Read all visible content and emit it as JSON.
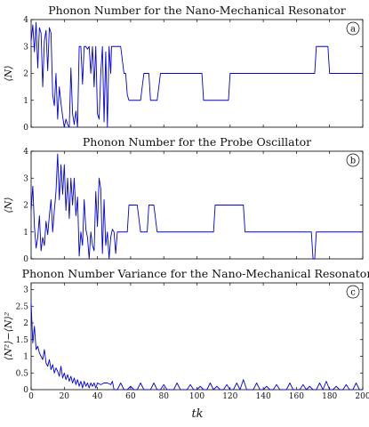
{
  "figure": {
    "xlabel": "tk",
    "line_color": "#0000e0",
    "axis_color": "#000000"
  },
  "chart_data": [
    {
      "type": "line",
      "title": "Phonon Number for the Nano-Mechanical Resonator",
      "panel_label": "a",
      "ylabel": "⟨N⟩",
      "xlim": [
        0,
        200
      ],
      "ylim": [
        0,
        4
      ],
      "yticks": [
        0,
        1,
        2,
        3,
        4
      ],
      "xticks": [
        0,
        20,
        40,
        60,
        80,
        100,
        120,
        140,
        160,
        180,
        200
      ],
      "show_xtick_labels": false,
      "series": [
        {
          "x": [
            0,
            1,
            2,
            3,
            4,
            5,
            6,
            7,
            8,
            9,
            10,
            11,
            12,
            13,
            14,
            15,
            16,
            17,
            18,
            19,
            20,
            21,
            22,
            23,
            24,
            25,
            26,
            27,
            28,
            29,
            30,
            31,
            32,
            33,
            34,
            35,
            36,
            37,
            38,
            39,
            40,
            41,
            42,
            43,
            44,
            45,
            46,
            47,
            48,
            48.5,
            50,
            52,
            54,
            56,
            57,
            58,
            59,
            60,
            61,
            62,
            64,
            66,
            68,
            70,
            71,
            72,
            74,
            76,
            78,
            80,
            81,
            82,
            84,
            86,
            88,
            90,
            92,
            94,
            96,
            98,
            100,
            102,
            103,
            104,
            106,
            108,
            110,
            112,
            114,
            116,
            118,
            119,
            120,
            122,
            124,
            126,
            128,
            130,
            132,
            134,
            136,
            138,
            140,
            142,
            144,
            146,
            148,
            150,
            152,
            154,
            156,
            158,
            160,
            162,
            164,
            166,
            168,
            170,
            171,
            172,
            174,
            176,
            178,
            179,
            180,
            182,
            184,
            186,
            188,
            190,
            192,
            194,
            196,
            198,
            199.5
          ],
          "y": [
            3.2,
            3.8,
            2.8,
            3.9,
            2.2,
            3.7,
            3.5,
            1.5,
            3.2,
            3.6,
            2.1,
            3.7,
            3.5,
            1.2,
            0.8,
            2.0,
            0.3,
            1.5,
            0.9,
            0.4,
            0,
            0.3,
            0.1,
            0,
            2.2,
            0.5,
            0.1,
            0.6,
            0,
            3.0,
            3.0,
            1.6,
            3.0,
            3.0,
            2.9,
            3.0,
            2.0,
            3.0,
            1.5,
            3.0,
            0.5,
            0.3,
            2.0,
            3.0,
            0.2,
            2.8,
            0,
            3.0,
            2.0,
            3.0,
            3.0,
            3.0,
            3.0,
            2.0,
            2.0,
            1.2,
            1.0,
            1.0,
            1.0,
            1.0,
            1.0,
            1.0,
            2.0,
            2.0,
            2.0,
            1.0,
            1.0,
            1.0,
            2.0,
            2.0,
            2.0,
            2.0,
            2.0,
            2.0,
            2.0,
            2.0,
            2.0,
            2.0,
            2.0,
            2.0,
            2.0,
            2.0,
            2.0,
            1.0,
            1.0,
            1.0,
            1.0,
            1.0,
            1.0,
            1.0,
            1.0,
            1.0,
            2.0,
            2.0,
            2.0,
            2.0,
            2.0,
            2.0,
            2.0,
            2.0,
            2.0,
            2.0,
            2.0,
            2.0,
            2.0,
            2.0,
            2.0,
            2.0,
            2.0,
            2.0,
            2.0,
            2.0,
            2.0,
            2.0,
            2.0,
            2.0,
            2.0,
            2.0,
            2.0,
            3.0,
            3.0,
            3.0,
            3.0,
            3.0,
            2.0,
            2.0,
            2.0,
            2.0,
            2.0,
            2.0,
            2.0,
            2.0,
            2.0,
            2.0,
            2.0
          ]
        }
      ]
    },
    {
      "type": "line",
      "title": "Phonon Number for the Probe Oscillator",
      "panel_label": "b",
      "ylabel": "⟨N⟩",
      "xlim": [
        0,
        200
      ],
      "ylim": [
        0,
        4
      ],
      "yticks": [
        0,
        1,
        2,
        3,
        4
      ],
      "xticks": [
        0,
        20,
        40,
        60,
        80,
        100,
        120,
        140,
        160,
        180,
        200
      ],
      "show_xtick_labels": false,
      "series": [
        {
          "x": [
            0,
            1,
            2,
            3,
            4,
            5,
            6,
            7,
            8,
            9,
            10,
            11,
            12,
            13,
            14,
            15,
            16,
            17,
            18,
            19,
            20,
            21,
            22,
            23,
            24,
            25,
            26,
            27,
            28,
            29,
            30,
            31,
            32,
            33,
            34,
            35,
            36,
            37,
            38,
            39,
            40,
            41,
            42,
            43,
            44,
            45,
            46,
            47,
            48,
            49,
            50,
            51,
            52,
            54,
            56,
            58,
            59,
            60,
            62,
            64,
            66,
            68,
            70,
            71,
            72,
            74,
            76,
            78,
            80,
            81,
            82,
            84,
            86,
            88,
            90,
            92,
            94,
            96,
            98,
            100,
            102,
            104,
            106,
            108,
            110,
            111,
            112,
            114,
            116,
            118,
            120,
            122,
            124,
            126,
            128,
            129,
            130,
            132,
            134,
            136,
            138,
            140,
            142,
            144,
            146,
            148,
            150,
            152,
            154,
            156,
            158,
            160,
            162,
            164,
            166,
            168,
            169,
            170,
            171,
            172,
            174,
            176,
            177,
            178,
            180,
            182,
            184,
            186,
            188,
            190,
            192,
            194,
            196,
            198,
            199.5
          ],
          "y": [
            1.8,
            2.7,
            1.2,
            0.4,
            0.8,
            1.6,
            0.3,
            0.8,
            0.5,
            1.4,
            0.9,
            1.6,
            2.2,
            1.0,
            1.8,
            2.5,
            3.9,
            2.2,
            3.5,
            2.4,
            3.5,
            1.8,
            3.0,
            1.5,
            3.0,
            2.0,
            3.0,
            1.6,
            2.3,
            0.1,
            1.0,
            0.5,
            2.2,
            1.1,
            0.8,
            0,
            1.0,
            0.5,
            0.3,
            2.5,
            1.2,
            3.0,
            2.6,
            0.2,
            2.2,
            0.5,
            1.0,
            0,
            0.8,
            1.1,
            1.0,
            0.2,
            1.0,
            1.0,
            1.0,
            1.0,
            2.0,
            2.0,
            2.0,
            2.0,
            1.0,
            1.0,
            1.0,
            2.0,
            2.0,
            2.0,
            1.0,
            1.0,
            1.0,
            1.0,
            1.0,
            1.0,
            1.0,
            1.0,
            1.0,
            1.0,
            1.0,
            1.0,
            1.0,
            1.0,
            1.0,
            1.0,
            1.0,
            1.0,
            1.0,
            2.0,
            2.0,
            2.0,
            2.0,
            2.0,
            2.0,
            2.0,
            2.0,
            2.0,
            2.0,
            1.0,
            1.0,
            1.0,
            1.0,
            1.0,
            1.0,
            1.0,
            1.0,
            1.0,
            1.0,
            1.0,
            1.0,
            1.0,
            1.0,
            1.0,
            1.0,
            1.0,
            1.0,
            1.0,
            1.0,
            1.0,
            1.0,
            0,
            0,
            1.0,
            1.0,
            1.0,
            1.0,
            1.0,
            1.0,
            1.0,
            1.0,
            1.0,
            1.0,
            1.0,
            1.0,
            1.0,
            1.0,
            1.0,
            1.0
          ]
        }
      ]
    },
    {
      "type": "line",
      "title": "Phonon Number Variance for the Nano-Mechanical Resonator",
      "panel_label": "c",
      "ylabel": "⟨N²⟩−⟨N⟩²",
      "xlim": [
        0,
        200
      ],
      "ylim": [
        0,
        3.2
      ],
      "yticks": [
        0,
        0.5,
        1,
        1.5,
        2,
        2.5,
        3
      ],
      "ytick_labels": [
        "0",
        "0.5",
        "1",
        "1.5",
        "2",
        "2.5",
        "3"
      ],
      "xticks": [
        0,
        20,
        40,
        60,
        80,
        100,
        120,
        140,
        160,
        180,
        200
      ],
      "xtick_labels": [
        "0",
        "20",
        "40",
        "60",
        "80",
        "100",
        "120",
        "140",
        "160",
        "180",
        "200"
      ],
      "show_xtick_labels": true,
      "series": [
        {
          "x": [
            0,
            1,
            2,
            3,
            4,
            5,
            6,
            7,
            8,
            9,
            10,
            11,
            12,
            13,
            14,
            15,
            16,
            17,
            18,
            19,
            20,
            21,
            22,
            23,
            24,
            25,
            26,
            27,
            28,
            29,
            30,
            31,
            32,
            33,
            34,
            35,
            36,
            37,
            38,
            39,
            40,
            42,
            44,
            46,
            48,
            49,
            50,
            52,
            54,
            56,
            58,
            60,
            62,
            64,
            66,
            68,
            70,
            72,
            74,
            76,
            78,
            80,
            82,
            84,
            86,
            88,
            90,
            92,
            94,
            96,
            98,
            100,
            102,
            104,
            106,
            108,
            110,
            112,
            114,
            116,
            118,
            120,
            122,
            124,
            126,
            128,
            130,
            132,
            134,
            136,
            138,
            140,
            142,
            144,
            146,
            148,
            150,
            152,
            154,
            156,
            158,
            160,
            162,
            164,
            166,
            168,
            170,
            172,
            174,
            176,
            178,
            180,
            182,
            184,
            186,
            188,
            190,
            192,
            194,
            196,
            198,
            199.5
          ],
          "y": [
            2.6,
            1.4,
            1.9,
            1.2,
            1.3,
            1.1,
            1.0,
            0.9,
            1.2,
            0.8,
            0.7,
            0.9,
            0.6,
            0.75,
            0.5,
            0.65,
            0.55,
            0.4,
            0.7,
            0.35,
            0.5,
            0.3,
            0.45,
            0.25,
            0.4,
            0.2,
            0.35,
            0.15,
            0.3,
            0.1,
            0.25,
            0.05,
            0.25,
            0.1,
            0.2,
            0.05,
            0.2,
            0.1,
            0.2,
            0.05,
            0.2,
            0.15,
            0.2,
            0.2,
            0.15,
            0.25,
            0,
            0,
            0.2,
            0,
            0,
            0.1,
            0,
            0,
            0.2,
            0,
            0,
            0,
            0.2,
            0,
            0,
            0.15,
            0,
            0,
            0,
            0.2,
            0,
            0,
            0,
            0.15,
            0,
            0,
            0.1,
            0,
            0,
            0.2,
            0,
            0.1,
            0,
            0,
            0.15,
            0,
            0,
            0.2,
            0,
            0.3,
            0,
            0,
            0,
            0.2,
            0,
            0,
            0.1,
            0,
            0,
            0.15,
            0,
            0,
            0,
            0.2,
            0,
            0,
            0,
            0.15,
            0,
            0.1,
            0,
            0,
            0.2,
            0,
            0.25,
            0,
            0,
            0.1,
            0,
            0,
            0.15,
            0,
            0,
            0.2,
            0,
            0
          ]
        }
      ]
    }
  ]
}
